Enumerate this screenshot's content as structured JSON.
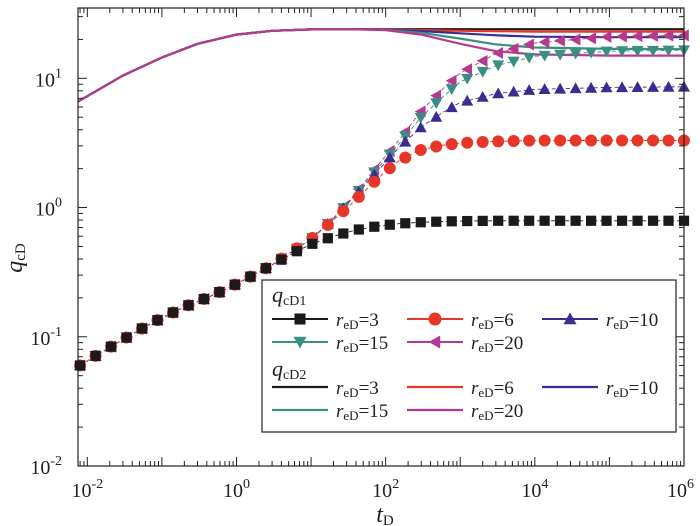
{
  "chart_data": {
    "type": "line",
    "xlabel_main": "t",
    "xlabel_sub": "D",
    "ylabel_main": "q",
    "ylabel_sub": "cD",
    "x_scale": "log",
    "y_scale": "log",
    "xlim": [
      0.0075,
      1000000
    ],
    "ylim": [
      0.01,
      35
    ],
    "grid": false,
    "legend_position": "bottom-right",
    "x_ticks": [
      {
        "value": 0.01,
        "base": "10",
        "exp": "-2"
      },
      {
        "value": 1,
        "base": "10",
        "exp": "0"
      },
      {
        "value": 100,
        "base": "10",
        "exp": "2"
      },
      {
        "value": 10000,
        "base": "10",
        "exp": "4"
      },
      {
        "value": 1000000,
        "base": "10",
        "exp": "6"
      }
    ],
    "y_ticks": [
      {
        "value": 0.01,
        "base": "10",
        "exp": "-2"
      },
      {
        "value": 0.1,
        "base": "10",
        "exp": "-1"
      },
      {
        "value": 1,
        "base": "10",
        "exp": "0"
      },
      {
        "value": 10,
        "base": "10",
        "exp": "1"
      }
    ],
    "legend": {
      "group1_title_main": "q",
      "group1_title_sub": "cD1",
      "group2_title_main": "q",
      "group2_title_sub": "cD2",
      "label_main": "r",
      "label_sub": "eD",
      "entries": [
        {
          "value": "=3",
          "color": "#1a1a1a"
        },
        {
          "value": "=6",
          "color": "#e8352a"
        },
        {
          "value": "=10",
          "color": "#3a2d8f"
        },
        {
          "value": "=15",
          "color": "#3a8f82"
        },
        {
          "value": "=20",
          "color": "#b53a8f"
        }
      ]
    },
    "series": [
      {
        "name": "qcD1 reD=3",
        "group": "qcD1",
        "color": "#1a1a1a",
        "marker": "square",
        "x": [
          0.008,
          0.015,
          0.03,
          0.06,
          0.1,
          0.2,
          0.4,
          0.8,
          1.5,
          3,
          6,
          10,
          20,
          40,
          80,
          150,
          300,
          600,
          1000,
          3000,
          10000,
          100000,
          1000000
        ],
        "y": [
          0.06,
          0.075,
          0.095,
          0.12,
          0.14,
          0.17,
          0.2,
          0.24,
          0.29,
          0.36,
          0.45,
          0.52,
          0.6,
          0.67,
          0.72,
          0.75,
          0.77,
          0.78,
          0.785,
          0.79,
          0.79,
          0.79,
          0.79
        ]
      },
      {
        "name": "qcD1 reD=6",
        "group": "qcD1",
        "color": "#e8352a",
        "marker": "circle",
        "x": [
          0.008,
          0.015,
          0.03,
          0.06,
          0.1,
          0.2,
          0.4,
          0.8,
          1.5,
          3,
          6,
          10,
          20,
          40,
          80,
          150,
          300,
          600,
          1000,
          3000,
          10000,
          100000,
          1000000
        ],
        "y": [
          0.06,
          0.075,
          0.095,
          0.12,
          0.14,
          0.17,
          0.2,
          0.24,
          0.29,
          0.36,
          0.47,
          0.57,
          0.8,
          1.15,
          1.7,
          2.3,
          2.8,
          3.05,
          3.15,
          3.25,
          3.3,
          3.3,
          3.3
        ]
      },
      {
        "name": "qcD1 reD=10",
        "group": "qcD1",
        "color": "#3a2d8f",
        "marker": "triangle-up",
        "x": [
          0.008,
          0.015,
          0.03,
          0.06,
          0.1,
          0.2,
          0.4,
          0.8,
          1.5,
          3,
          6,
          10,
          20,
          40,
          80,
          150,
          300,
          600,
          1000,
          3000,
          10000,
          100000,
          1000000
        ],
        "y": [
          0.06,
          0.075,
          0.095,
          0.12,
          0.14,
          0.17,
          0.2,
          0.24,
          0.29,
          0.36,
          0.47,
          0.57,
          0.82,
          1.25,
          1.95,
          2.9,
          4.2,
          5.5,
          6.5,
          7.6,
          8.2,
          8.5,
          8.6
        ]
      },
      {
        "name": "qcD1 reD=15",
        "group": "qcD1",
        "color": "#3a8f82",
        "marker": "triangle-down",
        "x": [
          0.008,
          0.015,
          0.03,
          0.06,
          0.1,
          0.2,
          0.4,
          0.8,
          1.5,
          3,
          6,
          10,
          20,
          40,
          80,
          150,
          300,
          600,
          1000,
          3000,
          10000,
          100000,
          1000000
        ],
        "y": [
          0.06,
          0.075,
          0.095,
          0.12,
          0.14,
          0.17,
          0.2,
          0.24,
          0.29,
          0.36,
          0.47,
          0.57,
          0.82,
          1.27,
          2.05,
          3.1,
          5.0,
          7.3,
          9.4,
          12.5,
          14.8,
          16.2,
          16.5
        ]
      },
      {
        "name": "qcD1 reD=20",
        "group": "qcD1",
        "color": "#b53a8f",
        "marker": "triangle-left",
        "x": [
          0.008,
          0.015,
          0.03,
          0.06,
          0.1,
          0.2,
          0.4,
          0.8,
          1.5,
          3,
          6,
          10,
          20,
          40,
          80,
          150,
          300,
          600,
          1000,
          3000,
          10000,
          100000,
          1000000
        ],
        "y": [
          0.06,
          0.075,
          0.095,
          0.12,
          0.14,
          0.17,
          0.2,
          0.24,
          0.29,
          0.36,
          0.47,
          0.57,
          0.83,
          1.3,
          2.15,
          3.3,
          5.6,
          8.4,
          11.0,
          15.5,
          18.8,
          21.0,
          21.5
        ]
      },
      {
        "name": "qcD2 reD=3",
        "group": "qcD2",
        "color": "#1a1a1a",
        "x": [
          0.0075,
          0.03,
          0.1,
          0.3,
          1,
          3,
          10,
          30,
          100,
          1000,
          10000,
          100000,
          1000000
        ],
        "y": [
          6.6,
          10.5,
          14.5,
          18.5,
          21.8,
          23.3,
          23.9,
          24.0,
          24.0,
          24.0,
          24.0,
          24.0,
          24.0
        ]
      },
      {
        "name": "qcD2 reD=6",
        "group": "qcD2",
        "color": "#e8352a",
        "x": [
          0.0075,
          0.03,
          0.1,
          0.3,
          1,
          3,
          10,
          30,
          100,
          300,
          1000,
          10000,
          100000,
          1000000
        ],
        "y": [
          6.6,
          10.5,
          14.5,
          18.5,
          21.8,
          23.3,
          23.9,
          24.0,
          23.9,
          23.6,
          23.3,
          23.0,
          23.0,
          23.0
        ]
      },
      {
        "name": "qcD2 reD=10",
        "group": "qcD2",
        "color": "#3a2d8f",
        "x": [
          0.0075,
          0.03,
          0.1,
          0.3,
          1,
          3,
          10,
          30,
          100,
          300,
          1000,
          3000,
          10000,
          100000,
          1000000
        ],
        "y": [
          6.6,
          10.5,
          14.5,
          18.5,
          21.8,
          23.3,
          23.9,
          24.0,
          23.8,
          23.2,
          22.3,
          21.5,
          21.0,
          20.8,
          20.8
        ]
      },
      {
        "name": "qcD2 reD=15",
        "group": "qcD2",
        "color": "#3a8f82",
        "x": [
          0.0075,
          0.03,
          0.1,
          0.3,
          1,
          3,
          10,
          30,
          100,
          300,
          1000,
          3000,
          10000,
          100000,
          1000000
        ],
        "y": [
          6.6,
          10.5,
          14.5,
          18.5,
          21.8,
          23.3,
          23.9,
          24.0,
          23.7,
          22.5,
          20.3,
          18.3,
          17.3,
          16.9,
          16.8
        ]
      },
      {
        "name": "qcD2 reD=20",
        "group": "qcD2",
        "color": "#b53a8f",
        "x": [
          0.0075,
          0.03,
          0.1,
          0.3,
          1,
          3,
          10,
          30,
          100,
          300,
          1000,
          3000,
          10000,
          100000,
          1000000
        ],
        "y": [
          6.6,
          10.5,
          14.5,
          18.5,
          21.8,
          23.3,
          23.9,
          24.0,
          23.6,
          21.8,
          18.5,
          16.2,
          15.3,
          15.0,
          15.0
        ]
      }
    ]
  }
}
